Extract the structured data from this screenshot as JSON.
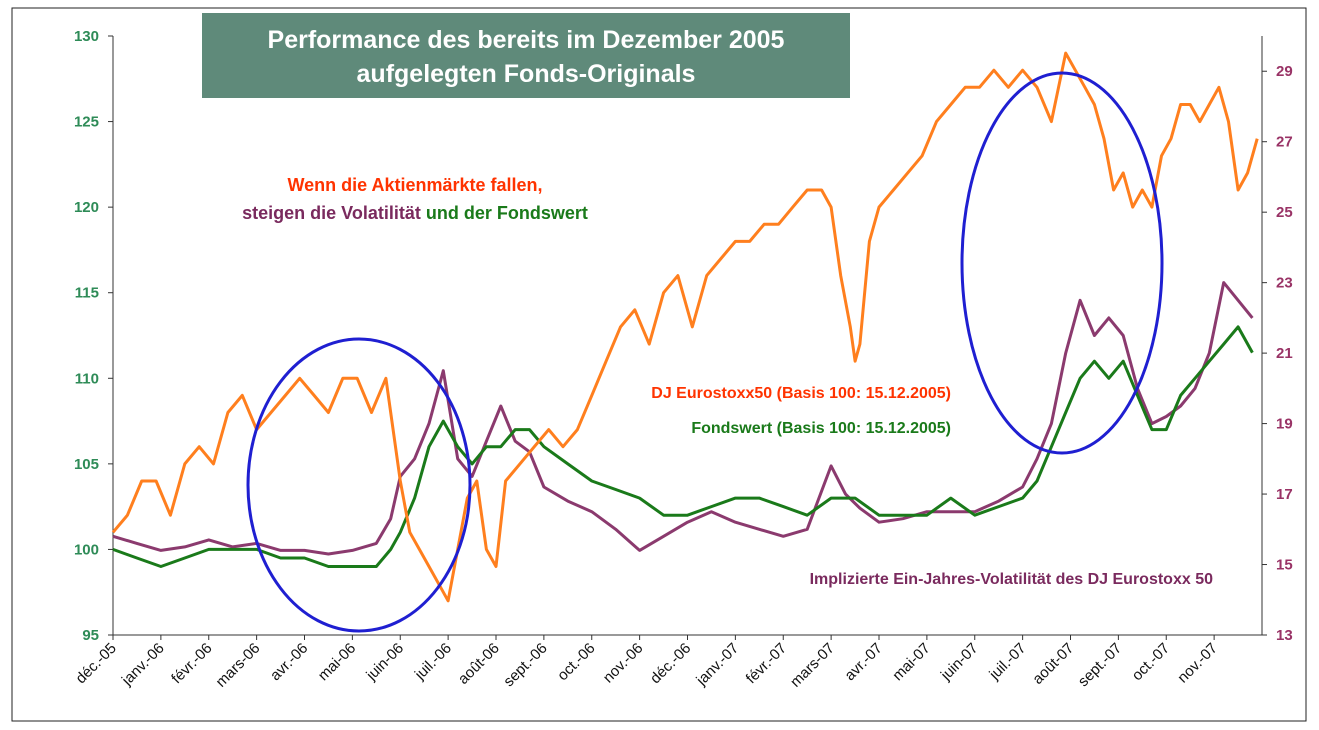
{
  "chart_data": {
    "type": "line",
    "title": "Performance des bereits im Dezember 2005 aufgelegten Fonds-Originals",
    "title_lines": [
      "Performance  des bereits im Dezember 2005",
      "aufgelegten Fonds-Originals"
    ],
    "x_tick_labels": [
      "déc.-05",
      "janv.-06",
      "févr.-06",
      "mars-06",
      "avr.-06",
      "mai-06",
      "juin-06",
      "juil.-06",
      "août-06",
      "sept.-06",
      "oct.-06",
      "nov.-06",
      "déc.-06",
      "janv.-07",
      "févr.-07",
      "mars-07",
      "avr.-07",
      "mai-07",
      "juin-07",
      "juil.-07",
      "août-07",
      "sept.-07",
      "oct.-07",
      "nov.-07"
    ],
    "x_range": [
      0,
      24
    ],
    "y_left": {
      "range": [
        95,
        130
      ],
      "ticks": [
        95,
        100,
        105,
        110,
        115,
        120,
        125,
        130
      ]
    },
    "y_right": {
      "range": [
        13,
        30
      ],
      "ticks": [
        13,
        15,
        17,
        19,
        21,
        23,
        25,
        27,
        29
      ]
    },
    "series": [
      {
        "name": "DJ Eurostoxx50 (Basis 100: 15.12.2005)",
        "axis": "left",
        "color": "#ff7f1e",
        "x": [
          0,
          0.3,
          0.6,
          0.9,
          1.2,
          1.5,
          1.8,
          2.1,
          2.4,
          2.7,
          3.0,
          3.3,
          3.6,
          3.9,
          4.2,
          4.5,
          4.8,
          5.1,
          5.4,
          5.7,
          6.0,
          6.2,
          6.4,
          6.6,
          6.8,
          7.0,
          7.2,
          7.4,
          7.6,
          7.8,
          8.0,
          8.2,
          8.5,
          8.8,
          9.1,
          9.4,
          9.7,
          10.0,
          10.3,
          10.6,
          10.9,
          11.2,
          11.5,
          11.8,
          12.1,
          12.4,
          12.7,
          13.0,
          13.3,
          13.6,
          13.9,
          14.2,
          14.5,
          14.8,
          15.0,
          15.2,
          15.4,
          15.5,
          15.6,
          15.8,
          16.0,
          16.3,
          16.6,
          16.9,
          17.2,
          17.5,
          17.8,
          18.1,
          18.4,
          18.7,
          19.0,
          19.3,
          19.6,
          19.9,
          20.1,
          20.3,
          20.5,
          20.7,
          20.9,
          21.1,
          21.3,
          21.5,
          21.7,
          21.9,
          22.1,
          22.3,
          22.5,
          22.7,
          22.9,
          23.1,
          23.3,
          23.5,
          23.7,
          23.9
        ],
        "y": [
          101,
          102,
          104,
          104,
          102,
          105,
          106,
          105,
          108,
          109,
          107,
          108,
          109,
          110,
          109,
          108,
          110,
          110,
          108,
          110,
          104,
          101,
          100,
          99,
          98,
          97,
          100,
          103,
          104,
          100,
          99,
          104,
          105,
          106,
          107,
          106,
          107,
          109,
          111,
          113,
          114,
          112,
          115,
          116,
          113,
          116,
          117,
          118,
          118,
          119,
          119,
          120,
          121,
          121,
          120,
          116,
          113,
          111,
          112,
          118,
          120,
          121,
          122,
          123,
          125,
          126,
          127,
          127,
          128,
          127,
          128,
          127,
          125,
          129,
          128,
          127,
          126,
          124,
          121,
          122,
          120,
          121,
          120,
          123,
          124,
          126,
          126,
          125,
          126,
          127,
          125,
          121,
          122,
          124
        ]
      },
      {
        "name": "Fondswert (Basis 100: 15.12.2005)",
        "axis": "left",
        "color": "#1a7a1a",
        "x": [
          0,
          0.5,
          1.0,
          1.5,
          2.0,
          2.5,
          3.0,
          3.5,
          4.0,
          4.5,
          5.0,
          5.5,
          5.8,
          6.0,
          6.3,
          6.6,
          6.9,
          7.2,
          7.5,
          7.8,
          8.1,
          8.4,
          8.7,
          9.0,
          9.5,
          10.0,
          10.5,
          11.0,
          11.5,
          12.0,
          12.5,
          13.0,
          13.5,
          14.0,
          14.5,
          15.0,
          15.5,
          16.0,
          16.5,
          17.0,
          17.5,
          18.0,
          18.5,
          19.0,
          19.3,
          19.6,
          19.9,
          20.2,
          20.5,
          20.8,
          21.1,
          21.4,
          21.7,
          22.0,
          22.3,
          22.6,
          22.9,
          23.2,
          23.5,
          23.8
        ],
        "y": [
          100,
          99.5,
          99,
          99.5,
          100,
          100,
          100,
          99.5,
          99.5,
          99,
          99,
          99,
          100,
          101,
          103,
          106,
          107.5,
          106,
          105,
          106,
          106,
          107,
          107,
          106,
          105,
          104,
          103.5,
          103,
          102,
          102,
          102.5,
          103,
          103,
          102.5,
          102,
          103,
          103,
          102,
          102,
          102,
          103,
          102,
          102.5,
          103,
          104,
          106,
          108,
          110,
          111,
          110,
          111,
          109,
          107,
          107,
          109,
          110,
          111,
          112,
          113,
          111.5
        ]
      },
      {
        "name": "Implizierte Ein-Jahres-Volatilität des DJ Eurostoxx 50",
        "axis": "right",
        "color": "#8b3a6e",
        "x": [
          0,
          0.5,
          1.0,
          1.5,
          2.0,
          2.5,
          3.0,
          3.5,
          4.0,
          4.5,
          5.0,
          5.5,
          5.8,
          6.0,
          6.3,
          6.6,
          6.9,
          7.2,
          7.5,
          7.8,
          8.1,
          8.4,
          8.7,
          9.0,
          9.5,
          10.0,
          10.5,
          11.0,
          11.5,
          12.0,
          12.5,
          13.0,
          13.5,
          14.0,
          14.5,
          15.0,
          15.3,
          15.6,
          16.0,
          16.5,
          17.0,
          17.5,
          18.0,
          18.5,
          19.0,
          19.3,
          19.6,
          19.9,
          20.2,
          20.5,
          20.8,
          21.1,
          21.4,
          21.7,
          22.0,
          22.3,
          22.6,
          22.9,
          23.2,
          23.5,
          23.8
        ],
        "y": [
          15.8,
          15.6,
          15.4,
          15.5,
          15.7,
          15.5,
          15.6,
          15.4,
          15.4,
          15.3,
          15.4,
          15.6,
          16.3,
          17.5,
          18,
          19,
          20.5,
          18,
          17.5,
          18.5,
          19.5,
          18.5,
          18.2,
          17.2,
          16.8,
          16.5,
          16.0,
          15.4,
          15.8,
          16.2,
          16.5,
          16.2,
          16.0,
          15.8,
          16.0,
          17.8,
          17,
          16.6,
          16.2,
          16.3,
          16.5,
          16.5,
          16.5,
          16.8,
          17.2,
          18,
          19,
          21,
          22.5,
          21.5,
          22,
          21.5,
          20,
          19,
          19.2,
          19.5,
          20,
          21,
          23,
          22.5,
          22
        ]
      }
    ],
    "annotations": [
      {
        "text": "Wenn die Aktienmärkte fallen,",
        "color": "#ff3300"
      },
      {
        "parts": [
          {
            "text": "steigen die Volatilität",
            "color": "#7a2a5e"
          },
          {
            "text": " und der Fondswert",
            "color": "#1a7a1a"
          }
        ]
      },
      {
        "text": "DJ Eurostoxx50 (Basis 100: 15.12.2005)",
        "color": "#ff3300"
      },
      {
        "text": "Fondswert (Basis 100: 15.12.2005)",
        "color": "#1a7a1a"
      },
      {
        "text": "Implizierte Ein-Jahres-Volatilität des DJ Eurostoxx 50",
        "color": "#7a2a5e"
      }
    ],
    "highlight_color": "#1f1fd1",
    "grid": false,
    "legend": "none"
  }
}
